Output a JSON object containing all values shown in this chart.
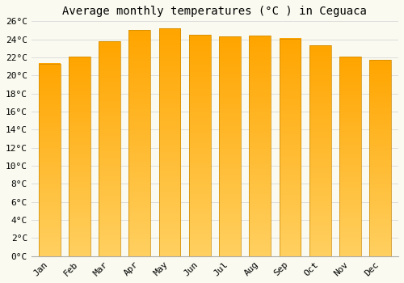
{
  "title": "Average monthly temperatures (°C ) in Ceguaca",
  "months": [
    "Jan",
    "Feb",
    "Mar",
    "Apr",
    "May",
    "Jun",
    "Jul",
    "Aug",
    "Sep",
    "Oct",
    "Nov",
    "Dec"
  ],
  "values": [
    21.3,
    22.1,
    23.8,
    25.0,
    25.2,
    24.5,
    24.3,
    24.4,
    24.1,
    23.3,
    22.1,
    21.7
  ],
  "bar_color": "#FFA500",
  "bar_color_light": "#FFD060",
  "bar_edge_color": "#CC8800",
  "background_color": "#FAFAF0",
  "grid_color": "#DDDDDD",
  "ylim": [
    0,
    26
  ],
  "ytick_step": 2,
  "title_fontsize": 10,
  "tick_fontsize": 8,
  "font_family": "monospace"
}
